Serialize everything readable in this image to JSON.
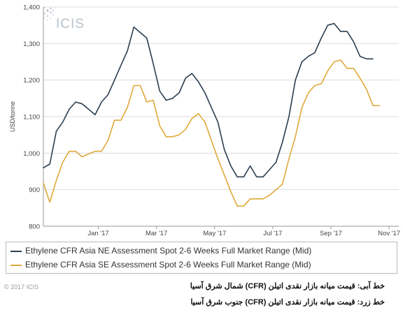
{
  "logo_text": "ICIS",
  "copyright": "© 2017 ICIS",
  "persian_notes": [
    "خط آبی: قیمت میانه بازار نقدی اتیلن (CFR) شمال شرق آسیا",
    "خط زرد: قیمت میانه بازار نقدی اتیلن (CFR) جنوب شرق آسیا"
  ],
  "chart_data": {
    "type": "line",
    "title": "",
    "xlabel": "",
    "ylabel": "USD/tonne",
    "ylim": [
      800,
      1400
    ],
    "y_ticks": [
      "800",
      "900",
      "1,000",
      "1,100",
      "1,200",
      "1,300",
      "1,400"
    ],
    "y_tick_values": [
      800,
      900,
      1000,
      1100,
      1200,
      1300,
      1400
    ],
    "x_ticks": [
      "Jan '17",
      "Mar '17",
      "May '17",
      "Jul '17",
      "Sep '17",
      "Nov '17"
    ],
    "x_tick_positions": [
      8.5,
      17.5,
      26.5,
      35.5,
      44.5,
      53.5
    ],
    "x_range": [
      0,
      55
    ],
    "grid": true,
    "legend_position": "bottom",
    "colors": {
      "ne": "#2c3e50",
      "se": "#e0a93a"
    },
    "series": [
      {
        "name": "Ethylene CFR Asia NE Assessment Spot 2-6 Weeks Full Market Range (Mid)",
        "color": "#2c3e50",
        "values": [
          960,
          970,
          1060,
          1085,
          1120,
          1140,
          1135,
          1120,
          1105,
          1140,
          1160,
          1200,
          1240,
          1280,
          1345,
          1330,
          1315,
          1245,
          1170,
          1145,
          1150,
          1165,
          1205,
          1218,
          1195,
          1165,
          1125,
          1085,
          1010,
          965,
          935,
          935,
          965,
          935,
          935,
          955,
          975,
          1030,
          1100,
          1200,
          1250,
          1265,
          1275,
          1315,
          1350,
          1355,
          1333,
          1333,
          1305,
          1265,
          1258,
          1258
        ]
      },
      {
        "name": "Ethylene CFR Asia SE Assessment Spot 2-6 Weeks Full Market Range (Mid)",
        "color": "#e0a93a",
        "values": [
          918,
          866,
          925,
          975,
          1005,
          1005,
          990,
          998,
          1005,
          1005,
          1035,
          1090,
          1090,
          1125,
          1185,
          1185,
          1140,
          1145,
          1075,
          1045,
          1045,
          1050,
          1065,
          1095,
          1108,
          1085,
          1035,
          985,
          940,
          895,
          855,
          855,
          875,
          875,
          875,
          885,
          900,
          915,
          985,
          1045,
          1125,
          1165,
          1185,
          1190,
          1225,
          1250,
          1255,
          1232,
          1232,
          1205,
          1175,
          1130,
          1130
        ]
      }
    ]
  }
}
